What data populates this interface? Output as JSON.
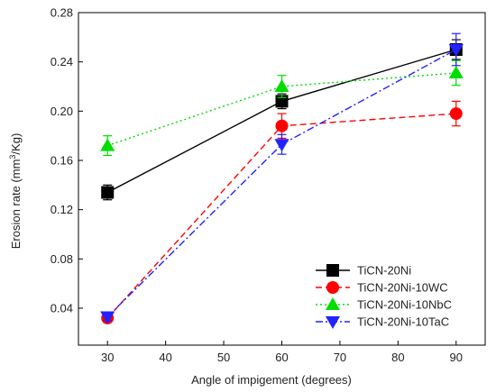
{
  "chart_data": {
    "type": "line",
    "x": [
      30,
      60,
      90
    ],
    "xlabel": "Angle of impigement (degrees)",
    "ylabel_parts": {
      "before": "Erosion rate (mm",
      "sup": "3",
      "after": "/Kg)"
    },
    "xlim": [
      25,
      95
    ],
    "ylim": [
      0.01,
      0.28
    ],
    "xticks": [
      "30",
      "40",
      "50",
      "60",
      "70",
      "80",
      "90"
    ],
    "yticks": [
      "0.04",
      "0.08",
      "0.12",
      "0.16",
      "0.20",
      "0.24",
      "0.28"
    ],
    "legend_position": "bottom-right",
    "grid": false,
    "series": [
      {
        "name": "TiCN-20Ni",
        "color": "#000000",
        "dash": "solid",
        "marker": "square",
        "values": [
          0.134,
          0.208,
          0.25
        ],
        "errors": [
          0.006,
          0.006,
          0.008
        ]
      },
      {
        "name": "TiCN-20Ni-10WC",
        "color": "#ff0000",
        "dash": "dashed",
        "marker": "circle",
        "values": [
          0.032,
          0.188,
          0.198
        ],
        "errors": [
          0.003,
          0.01,
          0.01
        ]
      },
      {
        "name": "TiCN-20Ni-10NbC",
        "color": "#00dd00",
        "dash": "dotted",
        "marker": "triangle-up",
        "values": [
          0.172,
          0.22,
          0.231
        ],
        "errors": [
          0.008,
          0.009,
          0.01
        ]
      },
      {
        "name": "TiCN-20Ni-10TaC",
        "color": "#2222ff",
        "dash": "dashdot",
        "marker": "triangle-down",
        "values": [
          0.033,
          0.173,
          0.25
        ],
        "errors": [
          0.003,
          0.008,
          0.013
        ]
      }
    ]
  }
}
